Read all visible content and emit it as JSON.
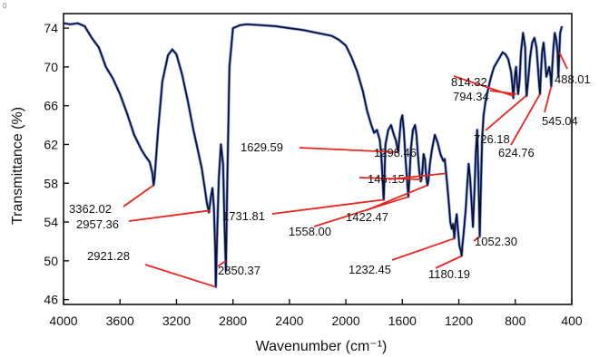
{
  "corner_mark": "0",
  "chart_data": {
    "type": "line",
    "xlabel": "Wavenumber (cm⁻¹)",
    "ylabel": "Transmittance (%)",
    "xlim": [
      4000,
      400
    ],
    "ylim": [
      45.5,
      75.5
    ],
    "x_reversed": true,
    "grid": false,
    "xticks": [
      4000,
      3600,
      3200,
      2800,
      2400,
      2000,
      1600,
      1200,
      800,
      400
    ],
    "xtick_labels": [
      "4000",
      "3600",
      "3200",
      "2800",
      "2400",
      "2000",
      "1600",
      "1200",
      "800",
      "400"
    ],
    "yticks": [
      46,
      50,
      54,
      58,
      62,
      66,
      70,
      74
    ],
    "ytick_labels": [
      "46",
      "50",
      "54",
      "58",
      "62",
      "66",
      "70",
      "74"
    ],
    "series": [
      {
        "color": "#0a1030",
        "highlight_color": "#1f4fd8",
        "x": [
          4000,
          3950,
          3900,
          3850,
          3800,
          3750,
          3700,
          3650,
          3600,
          3550,
          3500,
          3450,
          3420,
          3390,
          3370,
          3362,
          3355,
          3330,
          3300,
          3260,
          3230,
          3200,
          3160,
          3120,
          3080,
          3050,
          3020,
          3000,
          2985,
          2970,
          2957,
          2945,
          2935,
          2925,
          2921,
          2912,
          2900,
          2885,
          2870,
          2860,
          2850,
          2840,
          2825,
          2800,
          2750,
          2700,
          2600,
          2500,
          2400,
          2300,
          2200,
          2100,
          2050,
          2000,
          1960,
          1920,
          1880,
          1850,
          1820,
          1800,
          1780,
          1760,
          1750,
          1740,
          1735,
          1732,
          1728,
          1720,
          1700,
          1680,
          1660,
          1645,
          1635,
          1630,
          1622,
          1610,
          1600,
          1590,
          1575,
          1565,
          1558,
          1550,
          1540,
          1525,
          1510,
          1500,
          1490,
          1480,
          1470,
          1465,
          1458,
          1450,
          1440,
          1430,
          1422,
          1415,
          1405,
          1390,
          1370,
          1350,
          1330,
          1310,
          1300,
          1290,
          1280,
          1270,
          1260,
          1250,
          1240,
          1232,
          1225,
          1215,
          1205,
          1195,
          1185,
          1180,
          1175,
          1165,
          1150,
          1140,
          1130,
          1120,
          1110,
          1100,
          1090,
          1080,
          1070,
          1060,
          1052,
          1045,
          1035,
          1025,
          1010,
          995,
          980,
          965,
          950,
          930,
          910,
          890,
          870,
          850,
          830,
          820,
          814,
          808,
          800,
          794,
          788,
          780,
          770,
          760,
          745,
          730,
          726,
          720,
          710,
          695,
          680,
          665,
          650,
          640,
          630,
          625,
          620,
          610,
          600,
          590,
          580,
          560,
          550,
          545,
          540,
          530,
          520,
          510,
          500,
          495,
          488,
          482,
          470
        ],
        "y": [
          74.5,
          74.4,
          74.5,
          74.2,
          73.0,
          72.0,
          70.0,
          68.8,
          67.2,
          65.2,
          63.0,
          61.5,
          60.8,
          60.2,
          59.0,
          57.8,
          58.5,
          63.5,
          68.5,
          71.2,
          71.8,
          71.3,
          69.2,
          66.5,
          63.5,
          61.5,
          59.5,
          57.5,
          56.0,
          55.0,
          56.5,
          57.5,
          55.5,
          51.0,
          47.3,
          52.5,
          58.5,
          62.0,
          60.0,
          54.0,
          49.0,
          58.0,
          70.0,
          74.0,
          74.3,
          74.4,
          74.3,
          74.2,
          74.0,
          73.8,
          73.5,
          73.2,
          72.8,
          72.2,
          71.0,
          69.5,
          67.5,
          65.5,
          64.0,
          63.2,
          63.5,
          62.5,
          61.0,
          58.5,
          57.0,
          56.3,
          58.0,
          62.0,
          63.5,
          64.0,
          63.0,
          62.4,
          61.6,
          61.2,
          62.5,
          64.5,
          65.0,
          63.5,
          60.0,
          58.0,
          56.6,
          58.5,
          61.5,
          63.5,
          64.0,
          63.0,
          61.0,
          59.2,
          58.2,
          58.4,
          59.2,
          61.0,
          60.5,
          58.5,
          57.8,
          58.3,
          60.0,
          61.5,
          63.0,
          62.2,
          61.0,
          60.3,
          60.5,
          59.0,
          57.5,
          55.8,
          54.0,
          53.3,
          53.8,
          52.3,
          53.8,
          54.8,
          53.0,
          51.5,
          51.0,
          50.5,
          51.5,
          53.0,
          55.5,
          58.0,
          60.0,
          58.5,
          56.0,
          53.5,
          57.0,
          61.0,
          63.5,
          58.0,
          52.5,
          57.0,
          62.5,
          65.0,
          66.5,
          67.5,
          68.5,
          69.3,
          70.0,
          70.5,
          71.0,
          71.5,
          71.3,
          70.8,
          69.5,
          68.0,
          66.8,
          68.0,
          69.5,
          70.0,
          68.5,
          67.2,
          68.5,
          71.5,
          73.5,
          72.0,
          69.0,
          67.0,
          68.5,
          71.0,
          72.5,
          73.0,
          72.0,
          70.0,
          68.0,
          67.2,
          69.0,
          71.5,
          72.5,
          71.0,
          69.0,
          70.0,
          69.0,
          68.0,
          69.5,
          72.0,
          73.5,
          72.8,
          71.5,
          69.0,
          71.5,
          73.5,
          74.2
        ]
      }
    ],
    "annotations": [
      {
        "text": "3362.02",
        "x": 3362.02
      },
      {
        "text": "2957.36",
        "x": 2957.36
      },
      {
        "text": "2921.28",
        "x": 2921.28
      },
      {
        "text": "2850.37",
        "x": 2850.37
      },
      {
        "text": "1731.81",
        "x": 1731.81
      },
      {
        "text": "1629.59",
        "x": 1629.59
      },
      {
        "text": "1558.00",
        "x": 1558.0
      },
      {
        "text": "146_.15",
        "display": "146 .15",
        "x": 1463.15
      },
      {
        "text": "1422.47",
        "x": 1422.47
      },
      {
        "text": "1298.46",
        "x": 1298.46
      },
      {
        "text": "1232.45",
        "x": 1232.45
      },
      {
        "text": "1180.19",
        "x": 1180.19
      },
      {
        "text": "1052.30",
        "x": 1052.3
      },
      {
        "text": "814.32",
        "x": 814.32
      },
      {
        "text": "794.34",
        "x": 794.34
      },
      {
        "text": "726.18",
        "x": 726.18
      },
      {
        "text": "624.76",
        "x": 624.76
      },
      {
        "text": "545.04",
        "x": 545.04
      },
      {
        "text": "488.01",
        "x": 488.01
      }
    ],
    "annotation_color": "#e8261f"
  }
}
